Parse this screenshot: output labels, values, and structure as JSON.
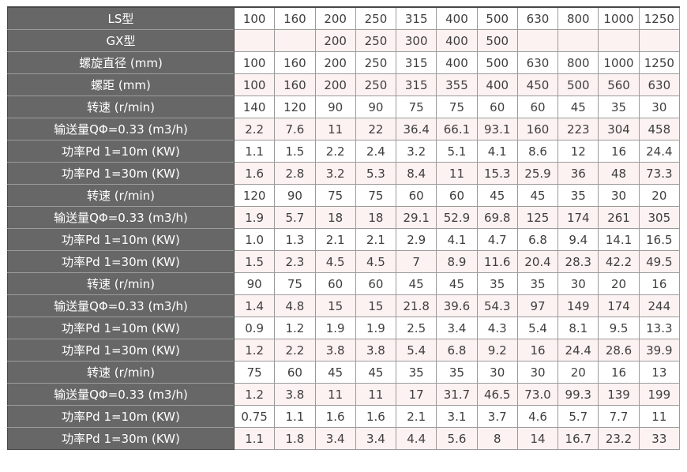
{
  "chart_data": {
    "type": "table",
    "description": "Screw conveyor specification table (LS / GX models)",
    "num_data_columns": 11,
    "rows": [
      {
        "label": "LS型",
        "cells": [
          "100",
          "160",
          "200",
          "250",
          "315",
          "400",
          "500",
          "630",
          "800",
          "1000",
          "1250"
        ]
      },
      {
        "label": "GX型",
        "cells": [
          "",
          "",
          "200",
          "250",
          "300",
          "400",
          "500",
          "",
          "",
          "",
          ""
        ]
      },
      {
        "label": "螺旋直径 (mm)",
        "cells": [
          "100",
          "160",
          "200",
          "250",
          "315",
          "400",
          "500",
          "630",
          "800",
          "1000",
          "1250"
        ]
      },
      {
        "label": "螺距 (mm)",
        "cells": [
          "100",
          "160",
          "200",
          "250",
          "315",
          "355",
          "400",
          "450",
          "500",
          "560",
          "630"
        ]
      },
      {
        "label": "转速 (r/min)",
        "cells": [
          "140",
          "120",
          "90",
          "90",
          "75",
          "75",
          "60",
          "60",
          "45",
          "35",
          "30"
        ]
      },
      {
        "label": "输送量QΦ=0.33 (m3/h)",
        "cells": [
          "2.2",
          "7.6",
          "11",
          "22",
          "36.4",
          "66.1",
          "93.1",
          "160",
          "223",
          "304",
          "458"
        ]
      },
      {
        "label": "功率Pd 1=10m (KW)",
        "cells": [
          "1.1",
          "1.5",
          "2.2",
          "2.4",
          "3.2",
          "5.1",
          "4.1",
          "8.6",
          "12",
          "16",
          "24.4"
        ]
      },
      {
        "label": "功率Pd 1=30m (KW)",
        "cells": [
          "1.6",
          "2.8",
          "3.2",
          "5.3",
          "8.4",
          "11",
          "15.3",
          "25.9",
          "36",
          "48",
          "73.3"
        ]
      },
      {
        "label": "转速 (r/min)",
        "cells": [
          "120",
          "90",
          "75",
          "75",
          "60",
          "60",
          "45",
          "45",
          "35",
          "30",
          "20"
        ]
      },
      {
        "label": "输送量QΦ=0.33 (m3/h)",
        "cells": [
          "1.9",
          "5.7",
          "18",
          "18",
          "29.1",
          "52.9",
          "69.8",
          "125",
          "174",
          "261",
          "305"
        ]
      },
      {
        "label": "功率Pd 1=10m (KW)",
        "cells": [
          "1.0",
          "1.3",
          "2.1",
          "2.1",
          "2.9",
          "4.1",
          "4.7",
          "6.8",
          "9.4",
          "14.1",
          "16.5"
        ]
      },
      {
        "label": "功率Pd 1=30m (KW)",
        "cells": [
          "1.5",
          "2.3",
          "4.5",
          "4.5",
          "7",
          "8.9",
          "11.6",
          "20.4",
          "28.3",
          "42.2",
          "49.5"
        ]
      },
      {
        "label": "转速 (r/min)",
        "cells": [
          "90",
          "75",
          "60",
          "60",
          "45",
          "45",
          "35",
          "35",
          "30",
          "20",
          "16"
        ]
      },
      {
        "label": "输送量QΦ=0.33 (m3/h)",
        "cells": [
          "1.4",
          "4.8",
          "15",
          "15",
          "21.8",
          "39.6",
          "54.3",
          "97",
          "149",
          "174",
          "244"
        ]
      },
      {
        "label": "功率Pd 1=10m (KW)",
        "cells": [
          "0.9",
          "1.2",
          "1.9",
          "1.9",
          "2.5",
          "3.4",
          "4.3",
          "5.4",
          "8.1",
          "9.5",
          "13.3"
        ]
      },
      {
        "label": "功率Pd 1=30m (KW)",
        "cells": [
          "1.2",
          "2.2",
          "3.8",
          "3.8",
          "5.4",
          "6.8",
          "9.2",
          "16",
          "24.4",
          "28.6",
          "39.9"
        ]
      },
      {
        "label": "转速 (r/min)",
        "cells": [
          "75",
          "60",
          "45",
          "45",
          "35",
          "35",
          "30",
          "30",
          "20",
          "16",
          "13"
        ]
      },
      {
        "label": "输送量QΦ=0.33 (m3/h)",
        "cells": [
          "1.2",
          "3.8",
          "11",
          "11",
          "17",
          "31.7",
          "46.5",
          "73.0",
          "99.3",
          "139",
          "199"
        ]
      },
      {
        "label": "功率Pd 1=10m (KW)",
        "cells": [
          "0.75",
          "1.1",
          "1.6",
          "1.6",
          "2.1",
          "3.1",
          "3.7",
          "4.6",
          "5.7",
          "7.7",
          "11"
        ]
      },
      {
        "label": "功率Pd 1=30m (KW)",
        "cells": [
          "1.1",
          "1.8",
          "3.4",
          "3.4",
          "4.4",
          "5.6",
          "8",
          "14",
          "16.7",
          "23.2",
          "33"
        ]
      }
    ]
  },
  "colors": {
    "label_bg": "#676767",
    "label_text": "#ffffff",
    "label_divider": "#9c9c9c",
    "row_bg": "#ffffff",
    "row_alt_bg": "#fcf2f1",
    "cell_border": "#9b9b9b",
    "outer_border": "#474747",
    "cell_text": "#3f3f3f"
  }
}
